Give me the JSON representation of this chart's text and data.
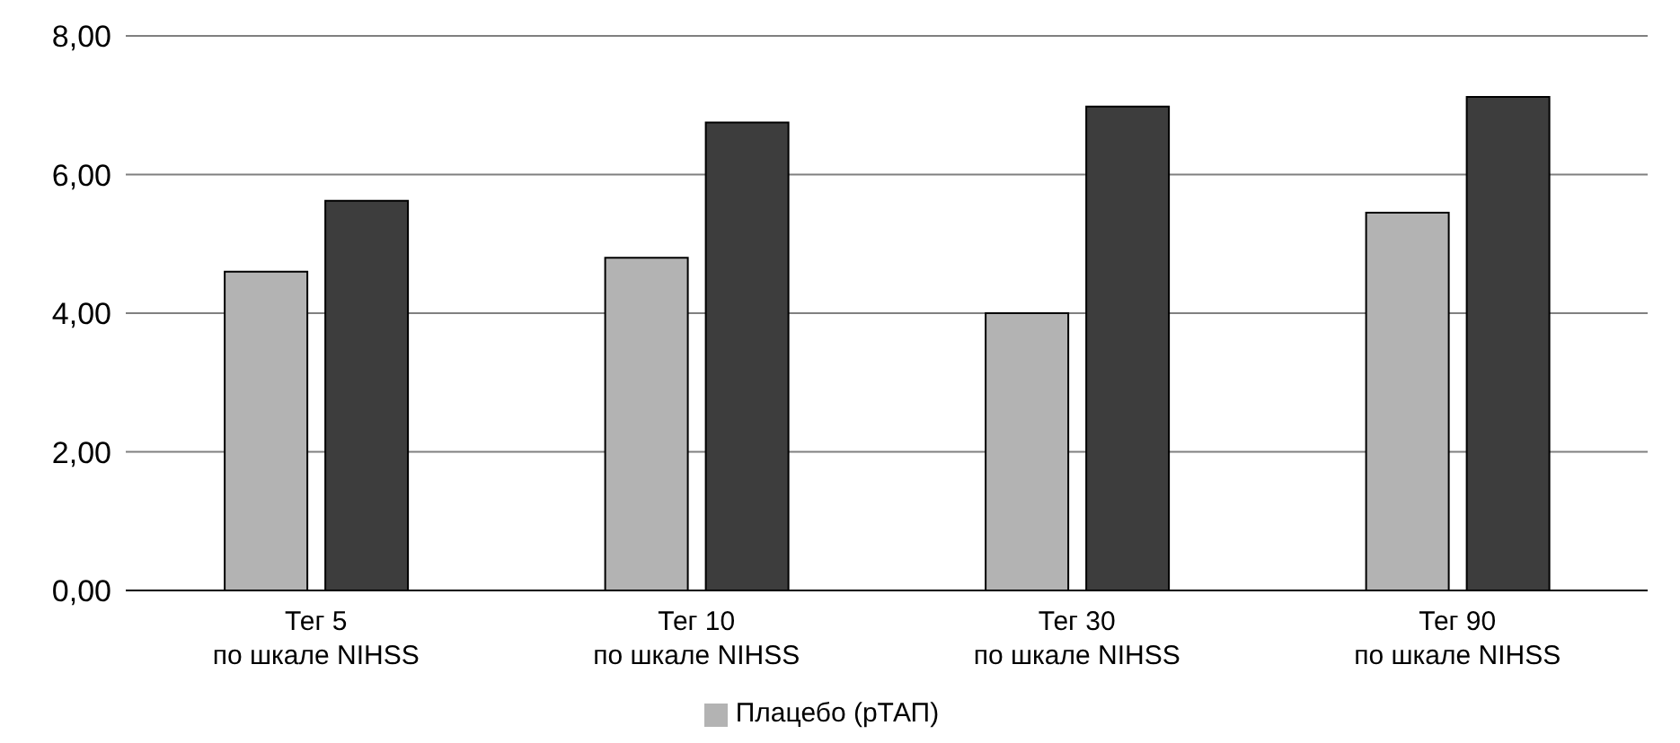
{
  "chart_data": {
    "type": "bar",
    "categories": [
      "Тег 5\nпо шкале NIHSS",
      "Тег 10\nпо шкале NIHSS",
      "Тег 30\nпо шкале NIHSS",
      "Тег 90\nпо шкале NIHSS"
    ],
    "series": [
      {
        "name": "Плацебо (рТАП)",
        "color": "#b3b3b3",
        "values": [
          4.6,
          4.8,
          4.0,
          5.45
        ]
      },
      {
        "color": "#3d3d3d",
        "values": [
          5.62,
          6.75,
          6.98,
          7.12
        ]
      }
    ],
    "ylim": [
      0,
      8
    ],
    "yticks": [
      {
        "value": 0,
        "label": "0,00"
      },
      {
        "value": 2,
        "label": "2,00"
      },
      {
        "value": 4,
        "label": "4,00"
      },
      {
        "value": 6,
        "label": "6,00"
      },
      {
        "value": 8,
        "label": "8,00"
      }
    ],
    "grid": "y",
    "legend": "bottom"
  }
}
